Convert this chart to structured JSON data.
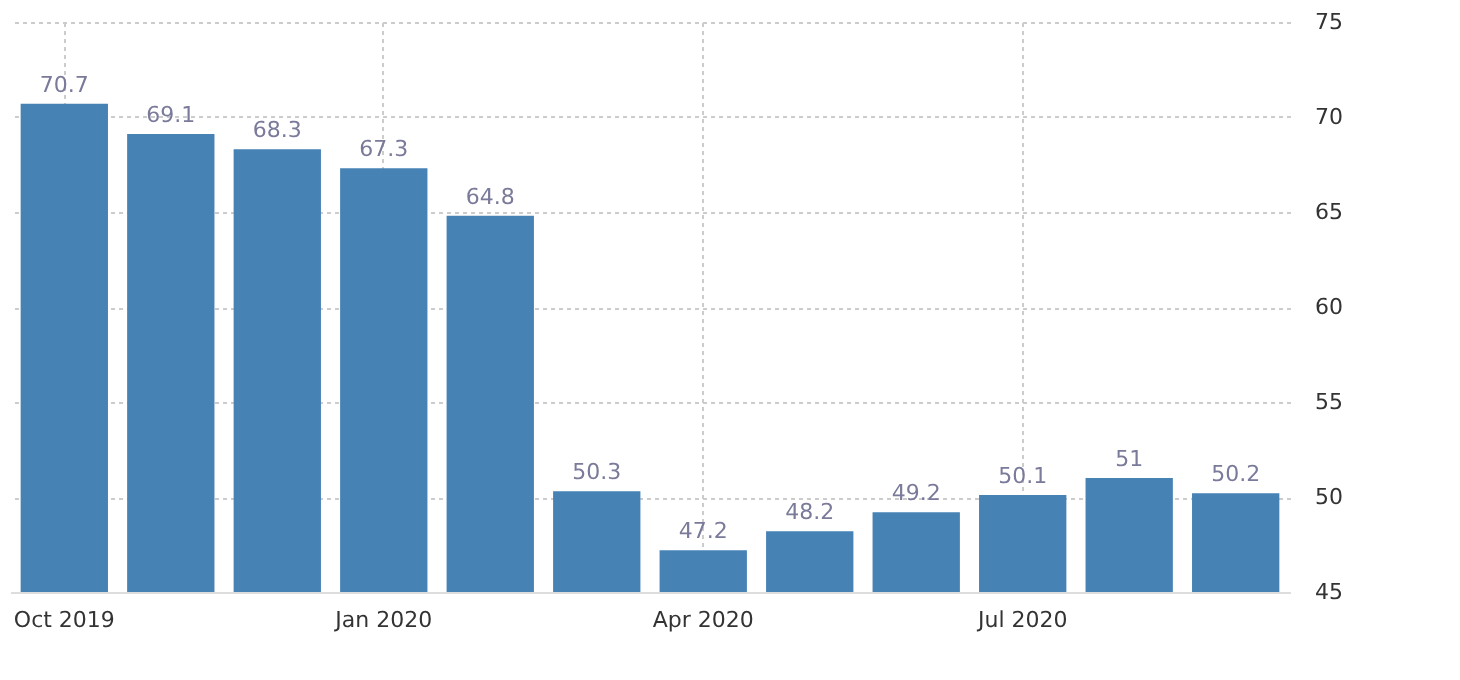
{
  "chart_data": {
    "type": "bar",
    "categories": [
      "Oct 2019",
      null,
      null,
      "Jan 2020",
      null,
      null,
      "Apr 2020",
      null,
      null,
      "Jul 2020",
      null,
      null
    ],
    "values": [
      70.7,
      69.1,
      68.3,
      67.3,
      64.8,
      50.3,
      47.2,
      48.2,
      49.2,
      50.1,
      51,
      50.2
    ],
    "color": "#4682b4",
    "ylim": [
      45,
      75
    ],
    "yticks": [
      45,
      50,
      55,
      60,
      65,
      70,
      75
    ],
    "grid": true,
    "data_labels": true
  }
}
